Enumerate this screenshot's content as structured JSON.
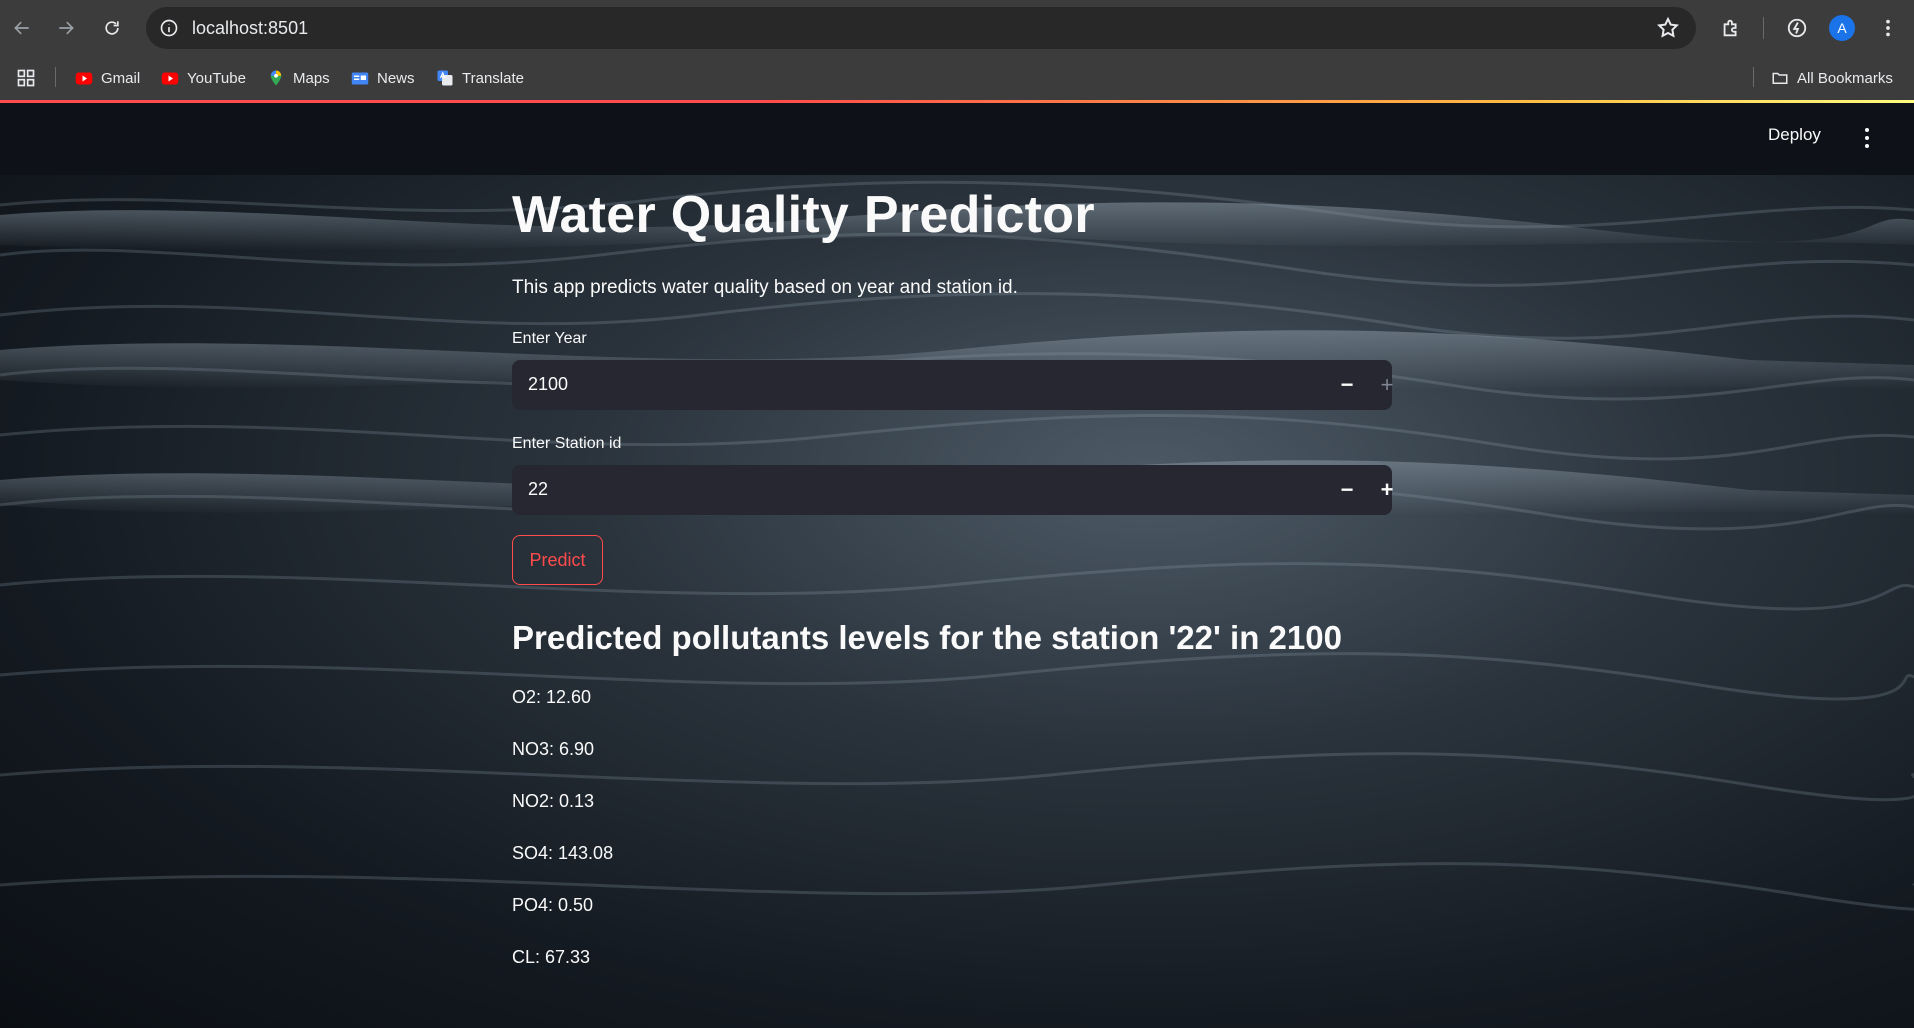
{
  "browser": {
    "url": "localhost:8501",
    "avatar_letter": "A",
    "bookmarks": [
      {
        "label": "Gmail"
      },
      {
        "label": "YouTube"
      },
      {
        "label": "Maps"
      },
      {
        "label": "News"
      },
      {
        "label": "Translate"
      }
    ],
    "all_bookmarks": "All Bookmarks"
  },
  "app_header": {
    "deploy_label": "Deploy"
  },
  "app": {
    "title": "Water Quality Predictor",
    "subtitle": "This app predicts water quality based on year and station id.",
    "year_field": {
      "label": "Enter Year",
      "value": "2100",
      "minus": "−",
      "plus": "+"
    },
    "station_field": {
      "label": "Enter Station id",
      "value": "22",
      "minus": "−",
      "plus": "+"
    },
    "predict_label": "Predict",
    "result_title": "Predicted pollutants levels for the station '22' in 2100",
    "results": [
      "O2: 12.60",
      "NO3: 6.90",
      "NO2: 0.13",
      "SO4: 143.08",
      "PO4: 0.50",
      "CL: 67.33"
    ]
  },
  "colors": {
    "accent": "#ff4b4b",
    "input_bg": "#262730",
    "header_bg": "#0e1117"
  }
}
